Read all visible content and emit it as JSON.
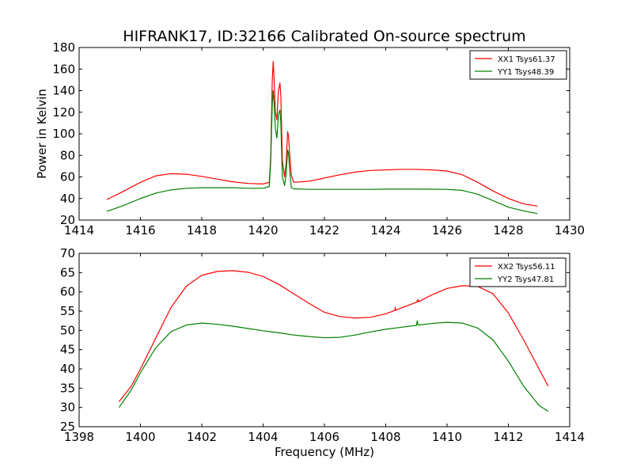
{
  "chart_data": [
    {
      "type": "line",
      "title": "HIFRANK17, ID:32166 Calibrated On-source spectrum",
      "xlabel": "",
      "ylabel": "Power in Kelvin",
      "xlim": [
        1414,
        1430
      ],
      "ylim": [
        20,
        180
      ],
      "xticks": [
        1414,
        1416,
        1418,
        1420,
        1422,
        1424,
        1426,
        1428,
        1430
      ],
      "yticks": [
        20,
        40,
        60,
        80,
        100,
        120,
        140,
        160,
        180
      ],
      "grid": false,
      "legend_position": "top-right",
      "series": [
        {
          "name": "XX1 Tsys61.37",
          "color": "#ff0000",
          "x": [
            1414.9,
            1415.4,
            1416.0,
            1416.5,
            1417.0,
            1417.5,
            1418.0,
            1418.5,
            1419.0,
            1419.5,
            1420.0,
            1420.2,
            1420.25,
            1420.3,
            1420.33,
            1420.36,
            1420.4,
            1420.45,
            1420.5,
            1420.55,
            1420.58,
            1420.6,
            1420.63,
            1420.7,
            1420.75,
            1420.8,
            1420.83,
            1420.87,
            1420.92,
            1421.0,
            1421.5,
            1422.0,
            1422.5,
            1423.0,
            1423.5,
            1424.0,
            1424.5,
            1425.0,
            1425.5,
            1426.0,
            1426.5,
            1427.0,
            1427.5,
            1428.0,
            1428.5,
            1428.95
          ],
          "y": [
            39,
            46,
            55,
            61,
            63,
            62.5,
            60.5,
            58,
            55.5,
            54,
            53.5,
            55,
            80,
            150,
            167,
            150,
            120,
            113,
            140,
            147,
            135,
            110,
            75,
            60,
            72,
            102,
            98,
            80,
            62,
            55,
            56,
            59,
            62,
            64.5,
            66,
            66.5,
            67,
            67,
            66.5,
            65.5,
            62,
            55,
            47,
            40,
            35,
            33
          ]
        },
        {
          "name": "YY1 Tsys48.39",
          "color": "#008000",
          "x": [
            1414.9,
            1415.4,
            1416.0,
            1416.5,
            1417.0,
            1417.5,
            1418.0,
            1418.5,
            1419.0,
            1419.5,
            1420.0,
            1420.2,
            1420.25,
            1420.3,
            1420.33,
            1420.36,
            1420.4,
            1420.45,
            1420.5,
            1420.55,
            1420.58,
            1420.6,
            1420.63,
            1420.7,
            1420.75,
            1420.8,
            1420.83,
            1420.87,
            1420.92,
            1421.0,
            1421.5,
            1422.0,
            1422.5,
            1423.0,
            1423.5,
            1424.0,
            1424.5,
            1425.0,
            1425.5,
            1426.0,
            1426.5,
            1427.0,
            1427.5,
            1428.0,
            1428.5,
            1428.95
          ],
          "y": [
            28,
            33,
            40,
            45,
            48,
            49.5,
            50,
            50,
            50,
            49.5,
            49.5,
            51,
            75,
            128,
            140,
            128,
            105,
            96,
            118,
            122,
            110,
            88,
            60,
            52,
            62,
            85,
            82,
            65,
            50,
            49,
            48.5,
            48.5,
            48.5,
            48.5,
            48.5,
            48.7,
            48.7,
            48.7,
            48.6,
            48.5,
            47.5,
            44,
            38,
            32,
            28.5,
            26
          ]
        }
      ]
    },
    {
      "type": "line",
      "title": "",
      "xlabel": "Frequency (MHz)",
      "ylabel": "",
      "xlim": [
        1398,
        1414
      ],
      "ylim": [
        25,
        70
      ],
      "xticks": [
        1398,
        1400,
        1402,
        1404,
        1406,
        1408,
        1410,
        1412,
        1414
      ],
      "yticks": [
        25,
        30,
        35,
        40,
        45,
        50,
        55,
        60,
        65,
        70
      ],
      "grid": false,
      "legend_position": "top-right",
      "series": [
        {
          "name": "XX2 Tsys56.11",
          "color": "#ff0000",
          "x": [
            1399.3,
            1399.7,
            1400.0,
            1400.5,
            1401.0,
            1401.5,
            1402.0,
            1402.5,
            1403.0,
            1403.5,
            1404.0,
            1404.5,
            1405.0,
            1405.5,
            1406.0,
            1406.5,
            1407.0,
            1407.5,
            1408.0,
            1408.3,
            1408.31,
            1408.32,
            1408.5,
            1409.0,
            1409.05,
            1409.06,
            1409.5,
            1410.0,
            1410.5,
            1411.0,
            1411.5,
            1412.0,
            1412.5,
            1413.0,
            1413.3
          ],
          "y": [
            31.5,
            35.5,
            40,
            48,
            56,
            61.5,
            64.3,
            65.3,
            65.5,
            65.1,
            64,
            62,
            59.5,
            57,
            54.7,
            53.6,
            53.2,
            53.4,
            54.3,
            55.2,
            56,
            55.2,
            55.8,
            57.3,
            58,
            57.4,
            59.2,
            60.9,
            61.6,
            61.4,
            59.5,
            54.5,
            47.5,
            40,
            35.5
          ]
        },
        {
          "name": "YY2 Tsys47.81",
          "color": "#008000",
          "x": [
            1399.3,
            1399.7,
            1400.0,
            1400.5,
            1401.0,
            1401.5,
            1402.0,
            1402.5,
            1403.0,
            1403.5,
            1404.0,
            1404.5,
            1405.0,
            1405.5,
            1406.0,
            1406.5,
            1407.0,
            1407.5,
            1408.0,
            1408.5,
            1409.0,
            1409.03,
            1409.05,
            1409.1,
            1409.5,
            1410.0,
            1410.5,
            1411.0,
            1411.5,
            1412.0,
            1412.5,
            1413.0,
            1413.3
          ],
          "y": [
            30,
            34.5,
            39,
            45.5,
            49.7,
            51.4,
            51.9,
            51.6,
            51.1,
            50.5,
            49.9,
            49.4,
            48.8,
            48.4,
            48.1,
            48.2,
            48.8,
            49.6,
            50.3,
            50.8,
            51.3,
            52.5,
            51.4,
            51.4,
            51.8,
            52.1,
            51.9,
            50.6,
            47.5,
            42,
            35.5,
            30.5,
            29
          ]
        }
      ]
    }
  ]
}
